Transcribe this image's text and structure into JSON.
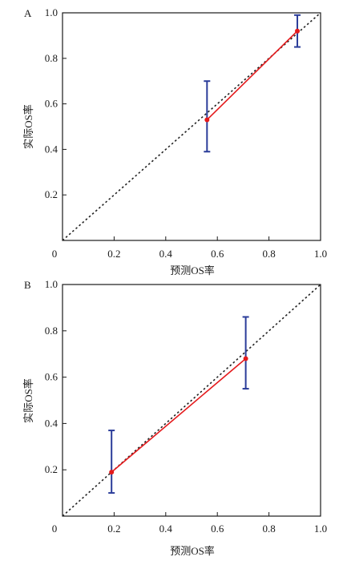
{
  "chart_data": [
    {
      "type": "scatter",
      "panel_label": "A",
      "title": "",
      "xlabel": "预测OS率",
      "ylabel": "实际OS率",
      "xlim": [
        0,
        1
      ],
      "ylim": [
        0,
        1
      ],
      "x_ticks": [
        "0",
        "0.2",
        "0.4",
        "0.6",
        "0.8",
        "1.0"
      ],
      "y_ticks": [
        "0.2",
        "0.4",
        "0.6",
        "0.8",
        "1.0"
      ],
      "grid": false,
      "reference_line": {
        "style": "dotted",
        "color": "#222222",
        "from": [
          0,
          0
        ],
        "to": [
          1,
          1
        ]
      },
      "series": [
        {
          "color": "#e41a1c",
          "points": [
            {
              "x": 0.56,
              "y": 0.53,
              "err_low": 0.39,
              "err_high": 0.7
            },
            {
              "x": 0.91,
              "y": 0.92,
              "err_low": 0.85,
              "err_high": 0.99
            }
          ]
        }
      ],
      "errorbar_color": "#2b3d9a"
    },
    {
      "type": "scatter",
      "panel_label": "B",
      "title": "",
      "xlabel": "预测OS率",
      "ylabel": "实际OS率",
      "xlim": [
        0,
        1
      ],
      "ylim": [
        0,
        1
      ],
      "x_ticks": [
        "0",
        "0.2",
        "0.4",
        "0.6",
        "0.8",
        "1.0"
      ],
      "y_ticks": [
        "0.2",
        "0.4",
        "0.6",
        "0.8",
        "1.0"
      ],
      "grid": false,
      "reference_line": {
        "style": "dotted",
        "color": "#222222",
        "from": [
          0,
          0
        ],
        "to": [
          1,
          1
        ]
      },
      "series": [
        {
          "color": "#e41a1c",
          "points": [
            {
              "x": 0.19,
              "y": 0.19,
              "err_low": 0.1,
              "err_high": 0.37
            },
            {
              "x": 0.71,
              "y": 0.68,
              "err_low": 0.55,
              "err_high": 0.86
            }
          ]
        }
      ],
      "errorbar_color": "#2b3d9a"
    }
  ]
}
